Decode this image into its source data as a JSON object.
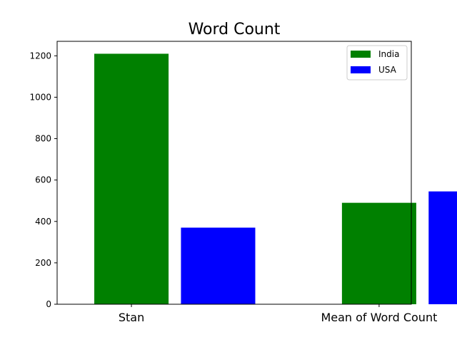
{
  "chart_data": {
    "type": "bar",
    "title": "Word Count",
    "xlabel": "",
    "ylabel": "",
    "categories": [
      "Stan",
      "Mean of Word Count"
    ],
    "series": [
      {
        "name": "India",
        "color": "#008000",
        "values": [
          1210,
          490
        ]
      },
      {
        "name": "USA",
        "color": "#0000ff",
        "values": [
          370,
          545
        ]
      }
    ],
    "ylim": [
      0,
      1270
    ],
    "yticks": [
      0,
      200,
      400,
      600,
      800,
      1000,
      1200
    ],
    "legend": "top-right",
    "grid": false
  }
}
